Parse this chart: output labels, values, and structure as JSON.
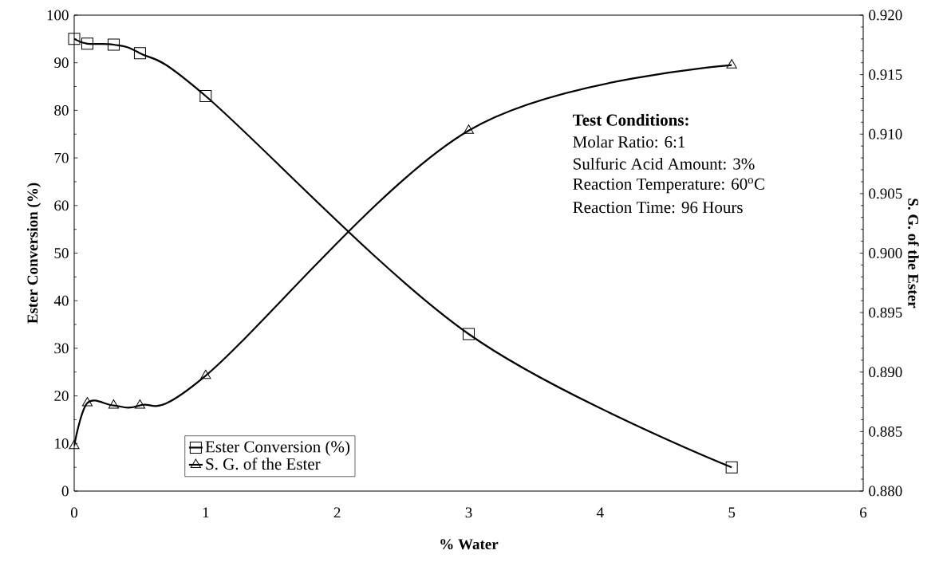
{
  "chart_data": {
    "type": "line",
    "xlabel": "% Water",
    "ylabel": "Ester Conversion (%)",
    "y2label": "S. G. of the Ester",
    "x": [
      0,
      0.1,
      0.3,
      0.5,
      1,
      3,
      5
    ],
    "series": [
      {
        "name": "Ester Conversion (%)",
        "color": "#000000",
        "marker": "square",
        "values": [
          95,
          94,
          93.8,
          92,
          83,
          33,
          5
        ]
      },
      {
        "name": "S. G. of the Ester",
        "color": "#000000",
        "marker": "triangle",
        "axis": "y2",
        "values": [
          0.8838,
          0.8874,
          0.8872,
          0.8872,
          0.8897,
          0.9103,
          0.9158
        ]
      }
    ],
    "xlim": [
      0,
      6
    ],
    "xticks": [
      0,
      1,
      2,
      3,
      4,
      5,
      6
    ],
    "ylim": [
      0,
      100
    ],
    "yticks": [
      0,
      10,
      20,
      30,
      40,
      50,
      60,
      70,
      80,
      90,
      100
    ],
    "y2lim": [
      0.88,
      0.92
    ],
    "y2ticks": [
      {
        "value": 0.88,
        "label": "0.880"
      },
      {
        "value": 0.885,
        "label": "0.885"
      },
      {
        "value": 0.89,
        "label": "0.890"
      },
      {
        "value": 0.895,
        "label": "0.895"
      },
      {
        "value": 0.9,
        "label": "0.900"
      },
      {
        "value": 0.905,
        "label": "0.905"
      },
      {
        "value": 0.91,
        "label": "0.910"
      },
      {
        "value": 0.915,
        "label": "0.915"
      },
      {
        "value": 0.92,
        "label": "0.920"
      }
    ],
    "legend": "bottom left",
    "grid": false,
    "line_style": "solid",
    "annotations": [
      "Test Conditions:",
      "Molar Ratio: 6:1",
      "Sulfuric Acid Amount: 3%",
      "Reaction Temperature: 60$^{o}$C",
      "Reaction Time: 96 Hours"
    ]
  }
}
